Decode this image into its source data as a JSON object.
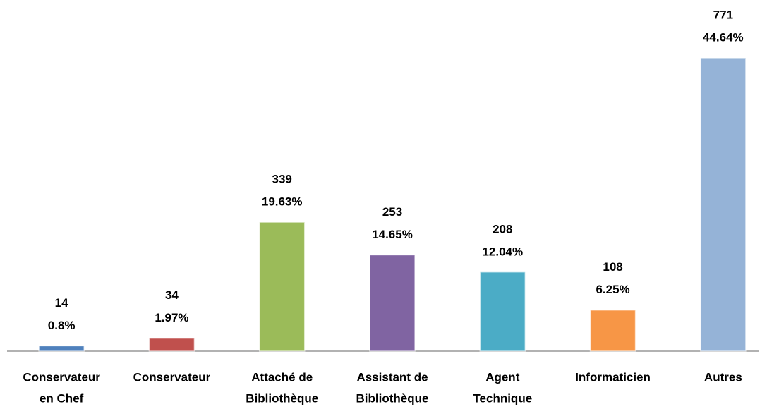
{
  "chart_data": {
    "type": "bar",
    "categories": [
      [
        "Conservateur",
        "en Chef"
      ],
      [
        "Conservateur"
      ],
      [
        "Attaché de",
        "Bibliothèque"
      ],
      [
        "Assistant de",
        "Bibliothèque"
      ],
      [
        "Agent",
        "Technique"
      ],
      [
        "Informaticien"
      ],
      [
        "Autres"
      ]
    ],
    "values": [
      14,
      34,
      339,
      253,
      208,
      108,
      771
    ],
    "percent_labels": [
      "0.8%",
      "1.97%",
      "19.63%",
      "14.65%",
      "12.04%",
      "6.25%",
      "44.64%"
    ],
    "colors": [
      "#4f81bd",
      "#c0504d",
      "#9bbb59",
      "#8064a2",
      "#4bacc6",
      "#f79646",
      "#95b3d7"
    ]
  }
}
